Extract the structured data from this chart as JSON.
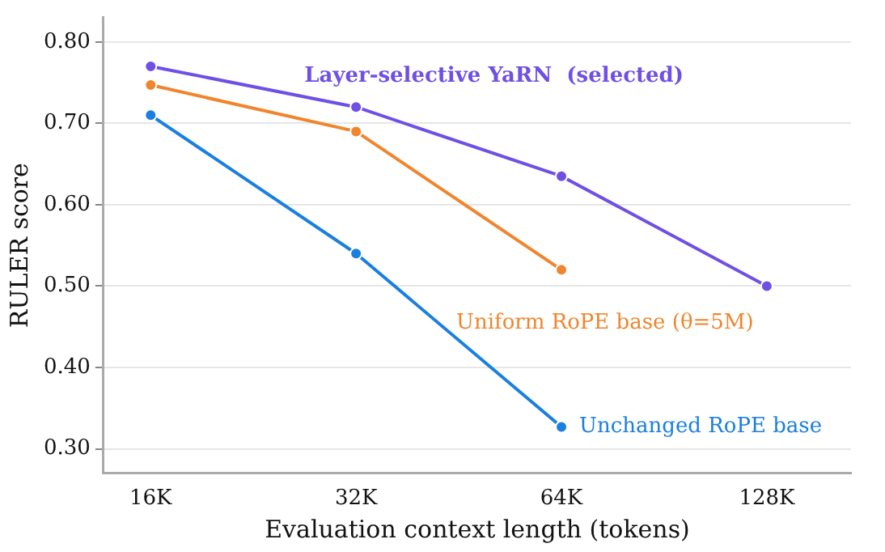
{
  "chart_data": {
    "type": "line",
    "xlabel": "Evaluation context length (tokens)",
    "ylabel": "RULER score",
    "categories": [
      "16K",
      "32K",
      "64K",
      "128K"
    ],
    "series": [
      {
        "name": "Layer-selective YaRN  (selected)",
        "color": "#6f4fe6",
        "values": [
          0.77,
          0.72,
          0.635,
          0.5
        ]
      },
      {
        "name": "Uniform RoPE base (θ=5M)",
        "color": "#f0852d",
        "values": [
          0.747,
          0.69,
          0.52,
          null
        ]
      },
      {
        "name": "Unchanged RoPE base",
        "color": "#1a7fe0",
        "values": [
          0.71,
          0.54,
          0.327,
          null
        ]
      }
    ],
    "ylim": [
      0.27,
      0.83
    ],
    "yticks": [
      {
        "value": 0.3,
        "label": "0.30"
      },
      {
        "value": 0.4,
        "label": "0.40"
      },
      {
        "value": 0.5,
        "label": "0.50"
      },
      {
        "value": 0.6,
        "label": "0.60"
      },
      {
        "value": 0.7,
        "label": "0.70"
      },
      {
        "value": 0.8,
        "label": "0.80"
      }
    ],
    "grid": "y",
    "legend": false,
    "marker": "circle",
    "line_style": "solid"
  }
}
